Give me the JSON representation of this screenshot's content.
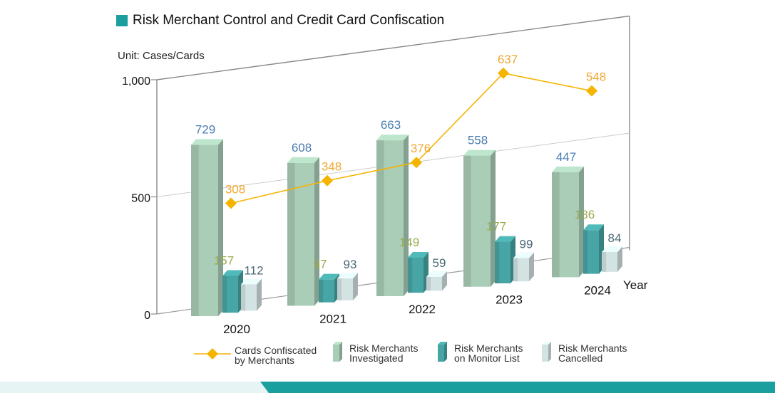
{
  "title": "Risk Merchant Control and Credit Card Confiscation",
  "unit": "Unit: Cases/Cards",
  "colors": {
    "title_square": "#1a9e9e",
    "investigated": "#a9cdb7",
    "monitor": "#47a5a5",
    "cancelled": "#d3e2e2",
    "line": "#f5b400",
    "label_investigated": "#4a7eb0",
    "label_monitor": "#9aab4e",
    "label_cancelled": "#4a6a75",
    "label_line": "#f0a830"
  },
  "chart_data": {
    "type": "bar",
    "categories": [
      "2020",
      "2021",
      "2022",
      "2023",
      "2024"
    ],
    "xlabel": "Year",
    "ylabel": "",
    "ylim": [
      0,
      1000
    ],
    "y_ticks": [
      "0",
      "500",
      "1,000"
    ],
    "grid": true,
    "legend_position": "bottom",
    "series": [
      {
        "name": "Risk Merchants Investigated",
        "type": "bar",
        "values": [
          729,
          608,
          663,
          558,
          447
        ]
      },
      {
        "name": "Risk Merchants on Monitor List",
        "type": "bar",
        "values": [
          157,
          97,
          149,
          177,
          186
        ]
      },
      {
        "name": "Risk Merchants Cancelled",
        "type": "bar",
        "values": [
          112,
          93,
          59,
          99,
          84
        ]
      },
      {
        "name": "Cards Confiscated by Merchants",
        "type": "line",
        "values": [
          308,
          348,
          376,
          637,
          548
        ]
      }
    ]
  },
  "legend": [
    {
      "key": "line",
      "line1": "Cards Confiscated",
      "line2": "by Merchants"
    },
    {
      "key": "investigated",
      "line1": "Risk Merchants",
      "line2": "Investigated"
    },
    {
      "key": "monitor",
      "line1": "Risk Merchants",
      "line2": "on Monitor List"
    },
    {
      "key": "cancelled",
      "line1": "Risk Merchants",
      "line2": "Cancelled"
    }
  ]
}
